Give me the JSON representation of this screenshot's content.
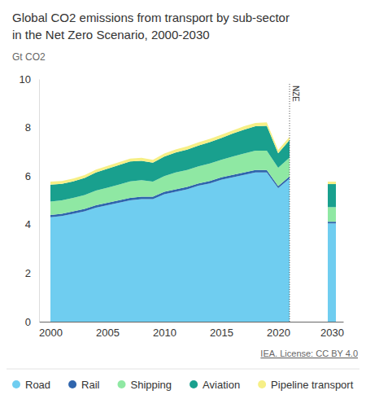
{
  "chart_data": [
    {
      "type": "area",
      "stacked": true,
      "grid": false,
      "legend": "bottom",
      "title": "Global CO2 emissions from transport by sub-sector in the Net Zero Scenario,  2000-2030",
      "y_label": "Gt CO2",
      "source": "IEA. License: CC BY 4.0",
      "annotations": [
        {
          "text": "NZE",
          "x": 2021
        }
      ],
      "x": [
        2000,
        2001,
        2002,
        2003,
        2004,
        2005,
        2006,
        2007,
        2008,
        2009,
        2010,
        2011,
        2012,
        2013,
        2014,
        2015,
        2016,
        2017,
        2018,
        2019,
        2020,
        2021
      ],
      "xlim": [
        1999,
        2031
      ],
      "xticks": [
        2000,
        2005,
        2010,
        2015,
        2020,
        2030
      ],
      "ylim": [
        0,
        10
      ],
      "yticks": [
        0,
        2,
        4,
        6,
        8,
        10
      ],
      "series": [
        {
          "name": "Road",
          "color": "#6fcdf0",
          "values": [
            4.3,
            4.35,
            4.45,
            4.55,
            4.7,
            4.8,
            4.9,
            5.0,
            5.05,
            5.05,
            5.25,
            5.35,
            5.45,
            5.6,
            5.7,
            5.85,
            5.95,
            6.05,
            6.15,
            6.15,
            5.5,
            5.9
          ]
        },
        {
          "name": "Rail",
          "color": "#2f65ad",
          "values": [
            0.1,
            0.1,
            0.1,
            0.1,
            0.1,
            0.1,
            0.1,
            0.1,
            0.1,
            0.1,
            0.1,
            0.1,
            0.1,
            0.1,
            0.1,
            0.1,
            0.1,
            0.1,
            0.1,
            0.1,
            0.09,
            0.09
          ]
        },
        {
          "name": "Shipping",
          "color": "#8fe8a3",
          "values": [
            0.55,
            0.55,
            0.55,
            0.57,
            0.6,
            0.62,
            0.65,
            0.68,
            0.68,
            0.62,
            0.65,
            0.7,
            0.7,
            0.7,
            0.72,
            0.72,
            0.75,
            0.78,
            0.8,
            0.8,
            0.75,
            0.77
          ]
        },
        {
          "name": "Aviation",
          "color": "#19a08e",
          "values": [
            0.7,
            0.68,
            0.68,
            0.7,
            0.75,
            0.78,
            0.8,
            0.82,
            0.8,
            0.78,
            0.8,
            0.82,
            0.84,
            0.86,
            0.88,
            0.9,
            0.95,
            0.98,
            1.0,
            1.02,
            0.6,
            0.72
          ]
        },
        {
          "name": "Pipeline transport",
          "color": "#f6ef86",
          "values": [
            0.12,
            0.12,
            0.12,
            0.12,
            0.12,
            0.12,
            0.12,
            0.12,
            0.12,
            0.12,
            0.13,
            0.13,
            0.13,
            0.13,
            0.13,
            0.13,
            0.13,
            0.14,
            0.14,
            0.14,
            0.13,
            0.14
          ]
        }
      ]
    },
    {
      "type": "bar",
      "stacked": true,
      "x": [
        2030
      ],
      "series": [
        {
          "values": [
            4.05
          ]
        },
        {
          "values": [
            0.07
          ]
        },
        {
          "values": [
            0.6
          ]
        },
        {
          "values": [
            0.95
          ]
        },
        {
          "values": [
            0.1
          ]
        }
      ]
    }
  ]
}
